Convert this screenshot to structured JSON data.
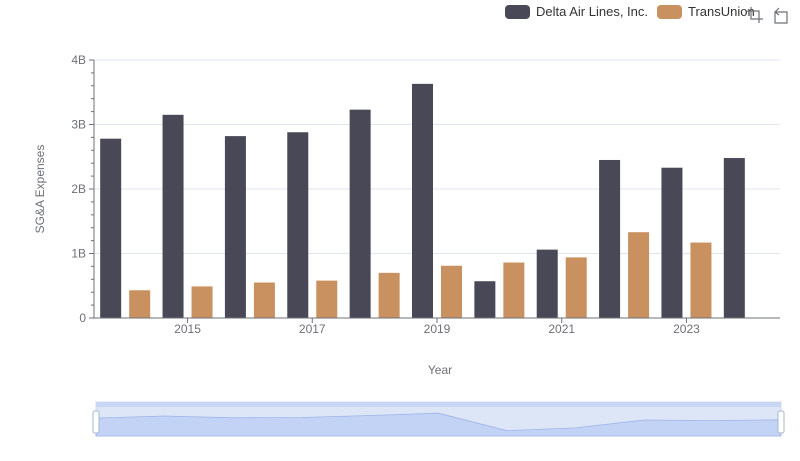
{
  "chart_data": {
    "type": "bar",
    "title": "",
    "xlabel": "Year",
    "ylabel": "SG&A Expenses",
    "categories": [
      "2014",
      "2015",
      "2016",
      "2017",
      "2018",
      "2019",
      "2020",
      "2021",
      "2022",
      "2023",
      "2024"
    ],
    "x_tick_labels": [
      "2015",
      "2017",
      "2019",
      "2021",
      "2023"
    ],
    "y_tick_labels": [
      "0",
      "1B",
      "2B",
      "3B",
      "4B"
    ],
    "ylim": [
      0,
      4000000000
    ],
    "series": [
      {
        "name": "Delta Air Lines, Inc.",
        "color": "#484856",
        "values": [
          2780000000,
          3150000000,
          2820000000,
          2880000000,
          3230000000,
          3630000000,
          570000000,
          1060000000,
          2450000000,
          2330000000,
          2480000000
        ]
      },
      {
        "name": "TransUnion",
        "color": "#c8915f",
        "values": [
          430000000,
          490000000,
          550000000,
          580000000,
          700000000,
          810000000,
          860000000,
          940000000,
          1330000000,
          1170000000,
          null
        ]
      }
    ],
    "grid": true,
    "legend": "top-right",
    "data_zoom": {
      "start": 0,
      "end": 100
    }
  },
  "toolbox": {
    "zoom_icon": "data-zoom-icon",
    "restore_icon": "restore-icon"
  }
}
